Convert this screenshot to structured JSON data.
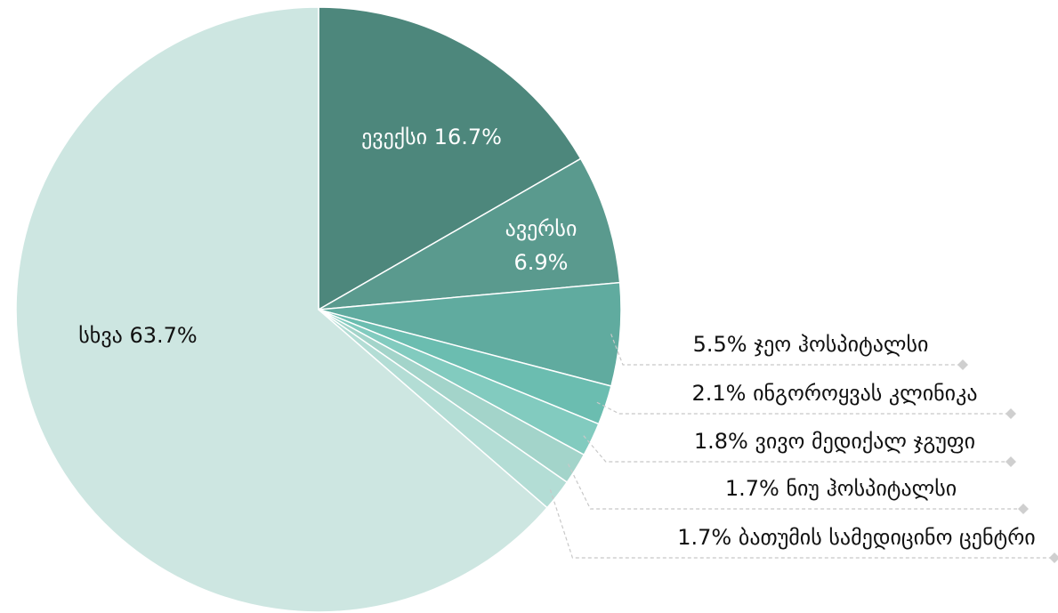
{
  "chart_data": {
    "type": "pie",
    "categories": [
      "ევექსი",
      "ავერსი",
      "ჯეო ჰოსპიტალსი",
      "ინგოროყვას კლინიკა",
      "ვივო მედიქალ ჯგუფი",
      "ნიუ ჰოსპიტალსი",
      "ბათუმის სამედიცინო ცენტრი",
      "სხვა"
    ],
    "values": [
      16.7,
      6.9,
      5.5,
      2.1,
      1.8,
      1.7,
      1.7,
      63.7
    ],
    "value_labels": [
      "16.7%",
      "6.9%",
      "5.5%",
      "2.1%",
      "1.8%",
      "1.7%",
      "1.7%",
      "63.7%"
    ],
    "colors": [
      "#4d877c",
      "#5a9a8e",
      "#60ab9f",
      "#6bbdb0",
      "#82cbbf",
      "#a3d4ca",
      "#b3ddd5",
      "#cde6e1"
    ]
  }
}
